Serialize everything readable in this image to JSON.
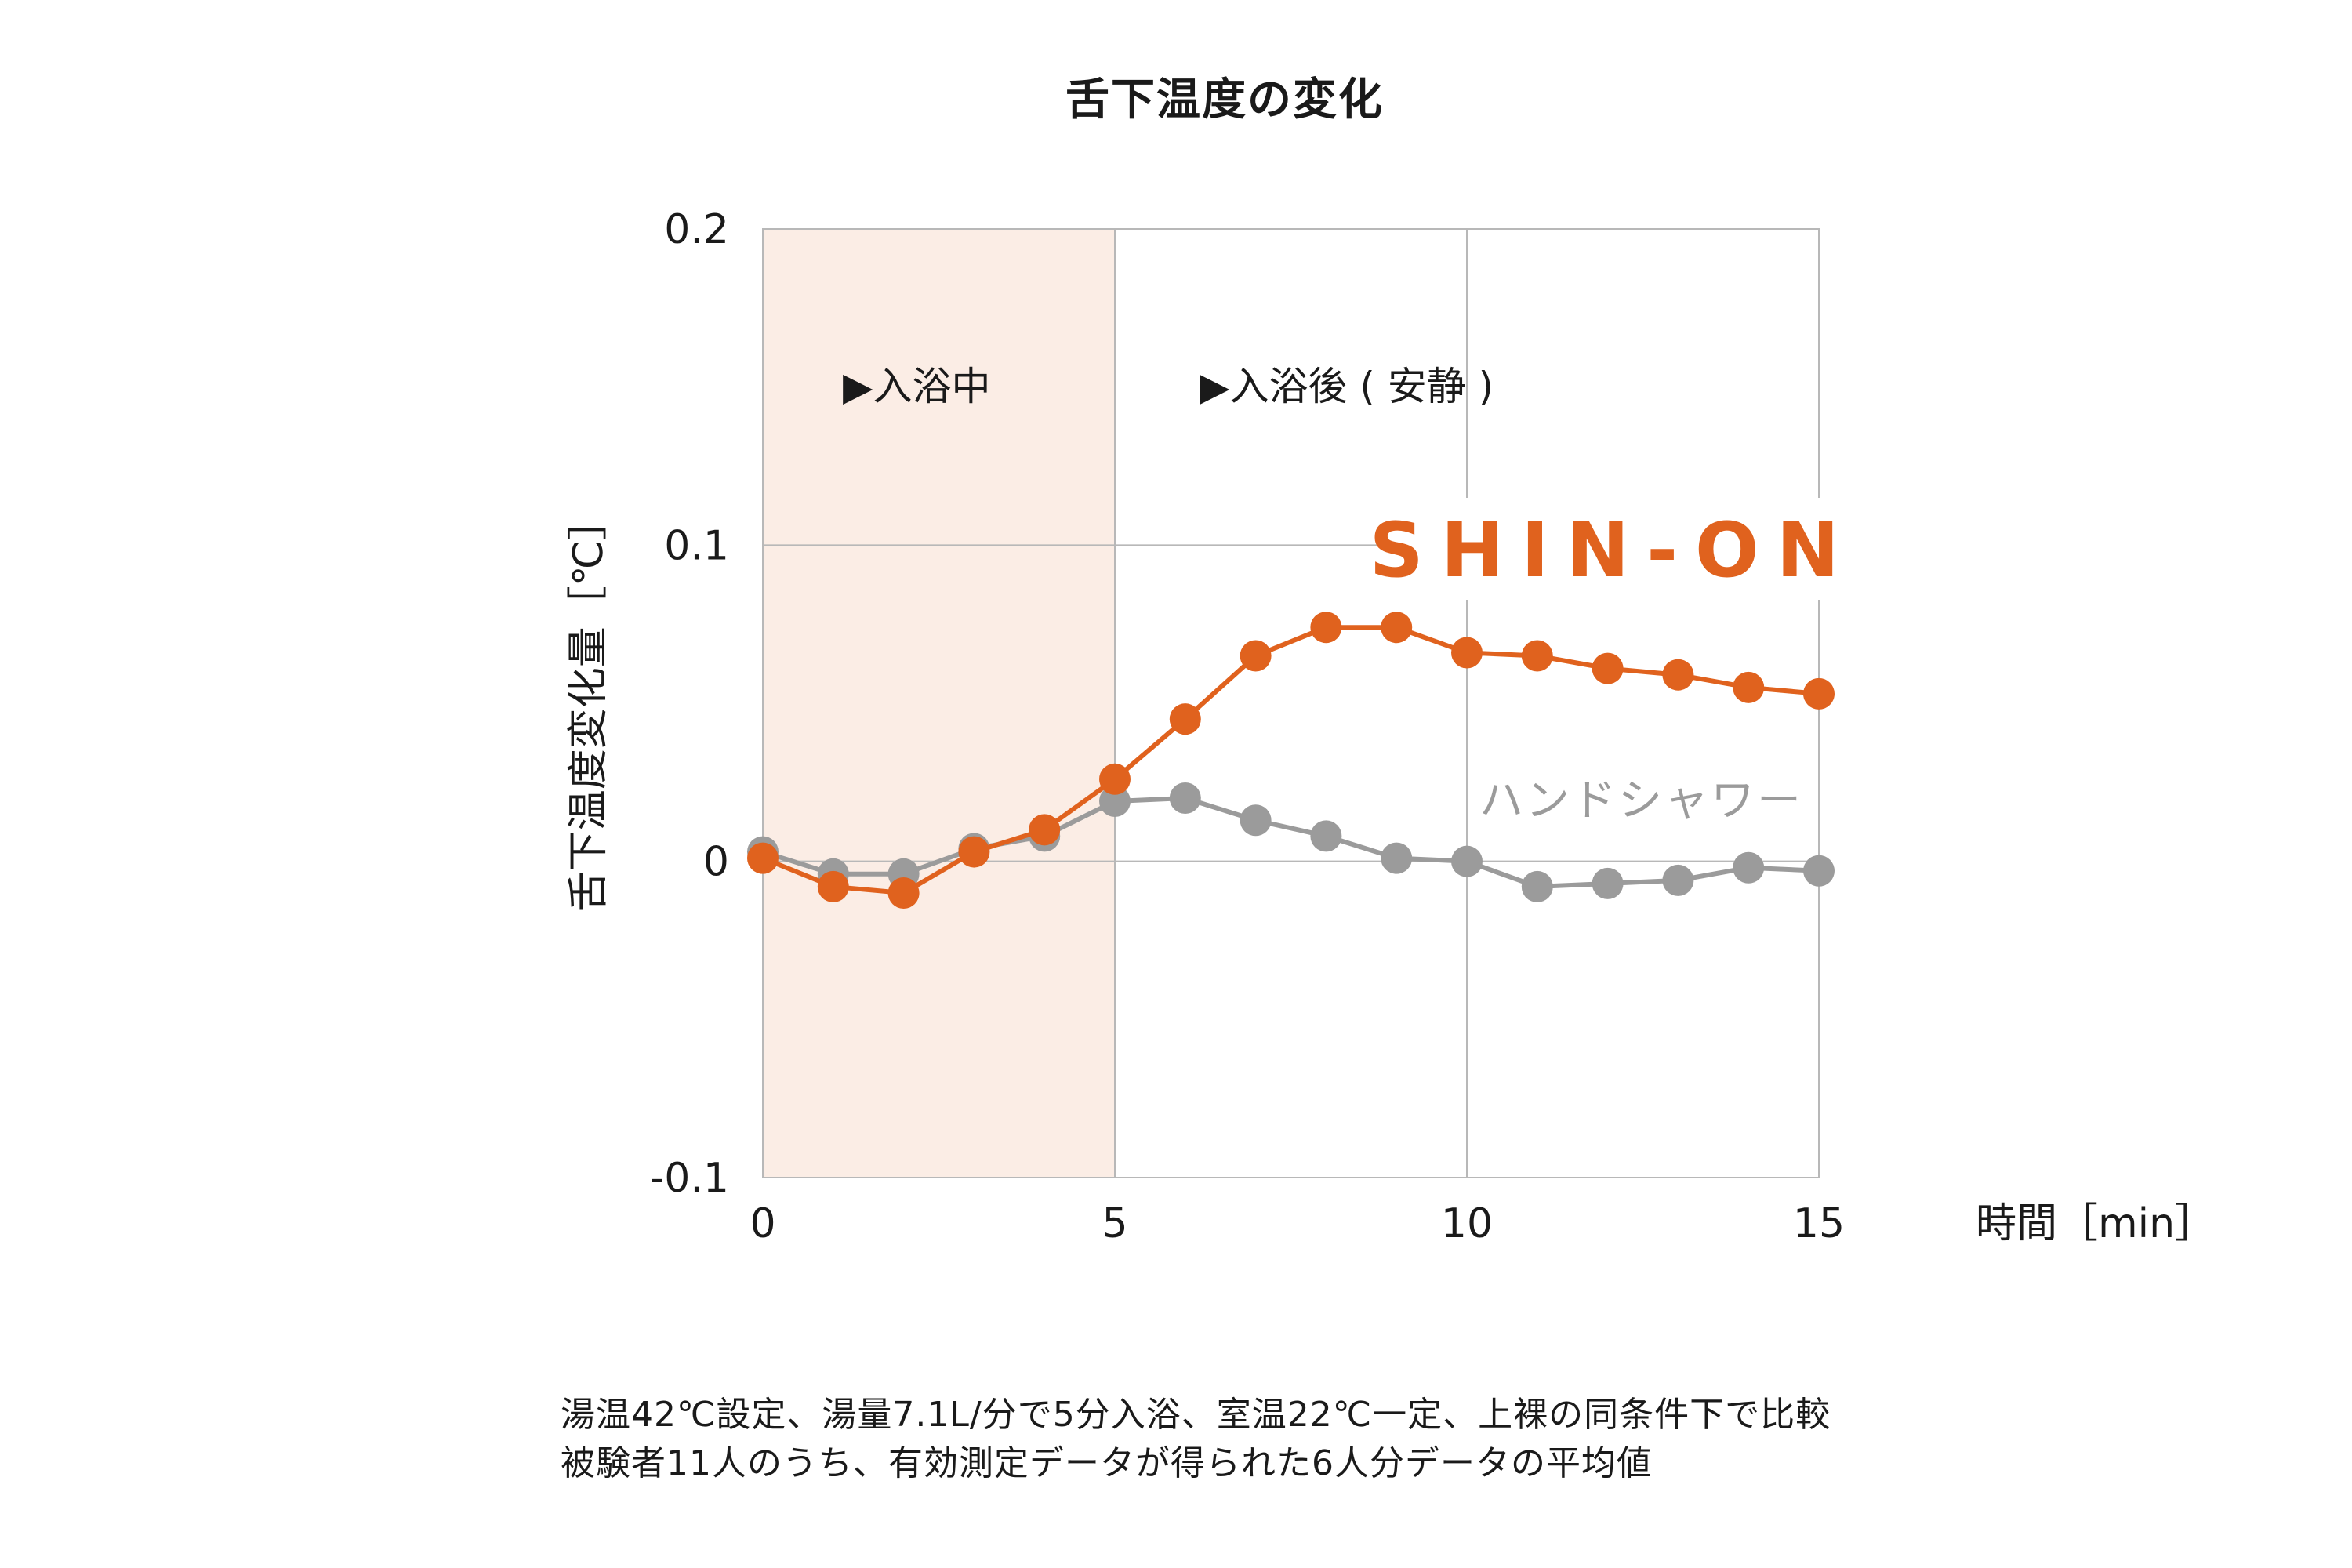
{
  "colors": {
    "shin_on": "#E0621E",
    "hand_shower": "#9B9B9B",
    "bath_region": "#FBEDE5",
    "grid": "#B8B8B8",
    "text": "#1a1a1a"
  },
  "chart_data": {
    "type": "line",
    "title": "舌下温度の変化",
    "xlabel": "時間［min］",
    "ylabel": "舌下温度変化量［℃］",
    "xlim": [
      0,
      15
    ],
    "ylim": [
      -0.1,
      0.2
    ],
    "xticks": [
      0,
      5,
      10,
      15
    ],
    "xtick_labels": [
      "0",
      "5",
      "10",
      "15"
    ],
    "yticks": [
      0.2,
      0.1,
      0,
      -0.1
    ],
    "ytick_labels": [
      "0.2",
      "0.1",
      "0",
      "-0.1"
    ],
    "grid": true,
    "shaded_region": {
      "x_start": 0,
      "x_end": 5,
      "label": "▶入浴中"
    },
    "region_label_after": "▶入浴後 ( 安静 )",
    "x": [
      0,
      1,
      2,
      3,
      4,
      5,
      6,
      7,
      8,
      9,
      10,
      11,
      12,
      13,
      14,
      15
    ],
    "series": [
      {
        "name": "ハンドシャワー",
        "color_key": "hand_shower",
        "values": [
          0.003,
          -0.004,
          -0.004,
          0.004,
          0.008,
          0.019,
          0.02,
          0.013,
          0.008,
          0.001,
          0.0,
          -0.008,
          -0.007,
          -0.006,
          -0.002,
          -0.003
        ]
      },
      {
        "name": "SHIN-ON",
        "color_key": "shin_on",
        "values": [
          0.001,
          -0.008,
          -0.01,
          0.003,
          0.01,
          0.026,
          0.045,
          0.065,
          0.074,
          0.074,
          0.066,
          0.065,
          0.061,
          0.059,
          0.055,
          0.053
        ]
      }
    ]
  },
  "notes": {
    "line1": "湯温42℃設定、湯量7.1L/分で5分入浴、室温22℃一定、上裸の同条件下で比較",
    "line2": "被験者11人のうち、有効測定データが得られた6人分データの平均値"
  }
}
